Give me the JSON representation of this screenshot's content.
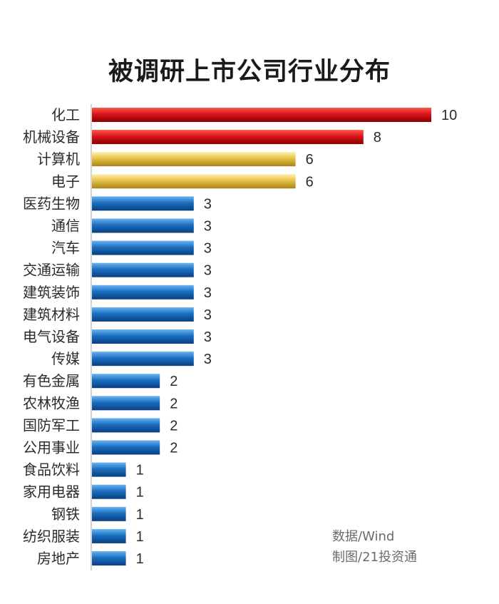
{
  "chart_data": {
    "type": "bar",
    "orientation": "horizontal",
    "title": "被调研上市公司行业分布",
    "categories": [
      "化工",
      "机械设备",
      "计算机",
      "电子",
      "医药生物",
      "通信",
      "汽车",
      "交通运输",
      "建筑装饰",
      "建筑材料",
      "电气设备",
      "传媒",
      "有色金属",
      "农林牧渔",
      "国防军工",
      "公用事业",
      "食品饮料",
      "家用电器",
      "钢铁",
      "纺织服装",
      "房地产"
    ],
    "values": [
      10,
      8,
      6,
      6,
      3,
      3,
      3,
      3,
      3,
      3,
      3,
      3,
      2,
      2,
      2,
      2,
      1,
      1,
      1,
      1,
      1
    ],
    "xlim": [
      0,
      10
    ],
    "grid": false,
    "legend": "none",
    "data_labels": true
  },
  "colors": {
    "red": "#cc0a14",
    "gold": "#e5c247",
    "blue": "#1668b8",
    "axis": "#a8a8a8"
  },
  "source": {
    "line1": "数据/Wind",
    "line2": "制图/21投资通"
  }
}
